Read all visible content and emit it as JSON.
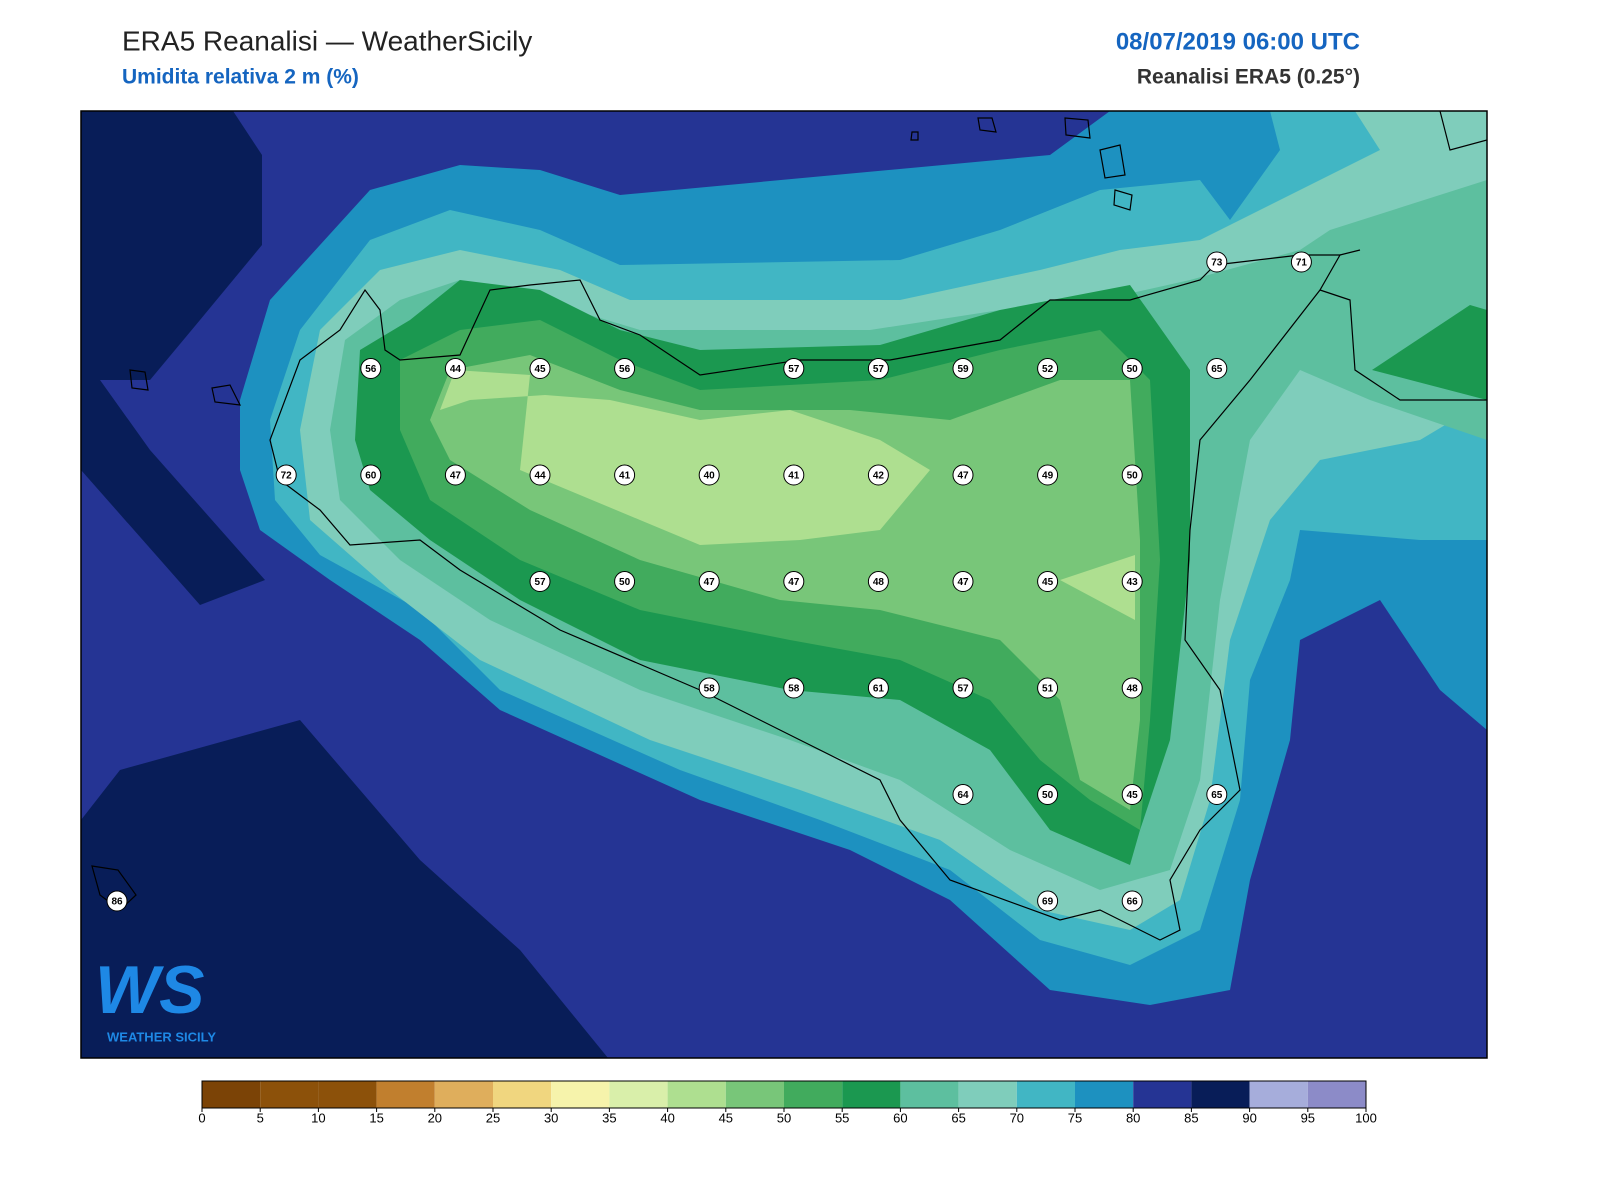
{
  "header": {
    "title": "ERA5 Reanalisi — WeatherSicily",
    "subtitle": "Umidita relativa 2 m (%)",
    "datetime": "08/07/2019 06:00 UTC",
    "source": "Reanalisi ERA5 (0.25°)"
  },
  "stations": {
    "rows": [
      [
        null,
        null,
        null,
        null,
        null,
        null,
        null,
        null,
        null,
        null,
        null,
        null,
        null,
        73,
        71
      ],
      [
        null,
        null,
        null,
        56,
        44,
        45,
        56,
        null,
        57,
        57,
        59,
        52,
        50,
        65,
        null
      ],
      [
        null,
        null,
        72,
        60,
        47,
        44,
        41,
        40,
        41,
        42,
        47,
        49,
        50,
        null,
        null
      ],
      [
        null,
        null,
        null,
        null,
        null,
        57,
        50,
        47,
        47,
        48,
        47,
        45,
        43,
        null,
        null
      ],
      [
        null,
        null,
        null,
        null,
        null,
        null,
        null,
        58,
        58,
        61,
        57,
        51,
        48,
        null,
        null
      ],
      [
        null,
        null,
        null,
        null,
        null,
        null,
        null,
        null,
        null,
        null,
        64,
        50,
        45,
        65,
        null
      ],
      [
        86,
        null,
        null,
        null,
        null,
        null,
        null,
        null,
        null,
        null,
        null,
        69,
        66,
        null,
        null
      ]
    ]
  },
  "colorbar": {
    "ticks": [
      0,
      5,
      10,
      15,
      20,
      25,
      30,
      35,
      40,
      45,
      50,
      55,
      60,
      65,
      70,
      75,
      80,
      85,
      90,
      95,
      100
    ],
    "colors": [
      "#7b4306",
      "#8c510a",
      "#8c510a",
      "#c17f2e",
      "#dfae5c",
      "#f0d67f",
      "#f6f3ab",
      "#d9efaa",
      "#aedf90",
      "#78c679",
      "#41ab5d",
      "#1b9850",
      "#5dbf9f",
      "#7fcdbb",
      "#41b6c4",
      "#1d91c0",
      "#253494",
      "#081d58",
      "#a6addb",
      "#8c8bc8"
    ]
  },
  "logo": {
    "mark": "WS",
    "text": "WEATHER SICILY"
  }
}
